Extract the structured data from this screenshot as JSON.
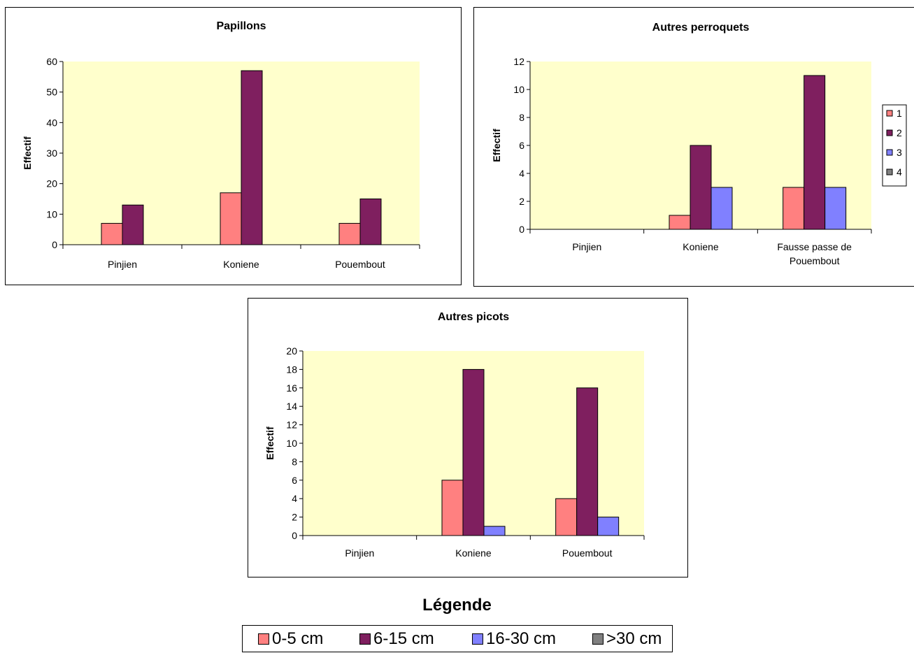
{
  "colors": {
    "plot_bg": "#ffffcc",
    "s1": "#ff8080",
    "s2": "#7f1f5f",
    "s3": "#8080ff",
    "s4": "#808080"
  },
  "chart_data": [
    {
      "type": "bar",
      "title": "Papillons",
      "ylabel": "Effectif",
      "categories": [
        "Pinjien",
        "Koniene",
        "Pouembout"
      ],
      "ylim": [
        0,
        60
      ],
      "yticks": [
        0,
        10,
        20,
        30,
        40,
        50,
        60
      ],
      "series": [
        {
          "values": [
            7,
            17,
            7
          ]
        },
        {
          "values": [
            13,
            57,
            15
          ]
        }
      ]
    },
    {
      "type": "bar",
      "title": "Autres perroquets",
      "ylabel": "Effectif",
      "categories": [
        [
          "Pinjien"
        ],
        [
          "Koniene"
        ],
        [
          "Fausse passe de",
          "Pouembout"
        ]
      ],
      "ylim": [
        0,
        12
      ],
      "yticks": [
        0,
        2,
        4,
        6,
        8,
        10,
        12
      ],
      "series": [
        {
          "name": "1",
          "values": [
            0,
            1,
            3
          ]
        },
        {
          "name": "2",
          "values": [
            0,
            6,
            11
          ]
        },
        {
          "name": "3",
          "values": [
            0,
            3,
            3
          ]
        },
        {
          "name": "4",
          "values": [
            0,
            0,
            0
          ]
        }
      ],
      "legend": "right"
    },
    {
      "type": "bar",
      "title": "Autres picots",
      "ylabel": "Effectif",
      "categories": [
        "Pinjien",
        "Koniene",
        "Pouembout"
      ],
      "ylim": [
        0,
        20
      ],
      "yticks": [
        0,
        2,
        4,
        6,
        8,
        10,
        12,
        14,
        16,
        18,
        20
      ],
      "series": [
        {
          "values": [
            0,
            6,
            4
          ]
        },
        {
          "values": [
            0,
            18,
            16
          ]
        },
        {
          "values": [
            0,
            1,
            2
          ]
        }
      ]
    }
  ],
  "legend": {
    "title": "Légende",
    "items": [
      "0-5 cm",
      "6-15 cm",
      "16-30 cm",
      ">30 cm"
    ]
  }
}
